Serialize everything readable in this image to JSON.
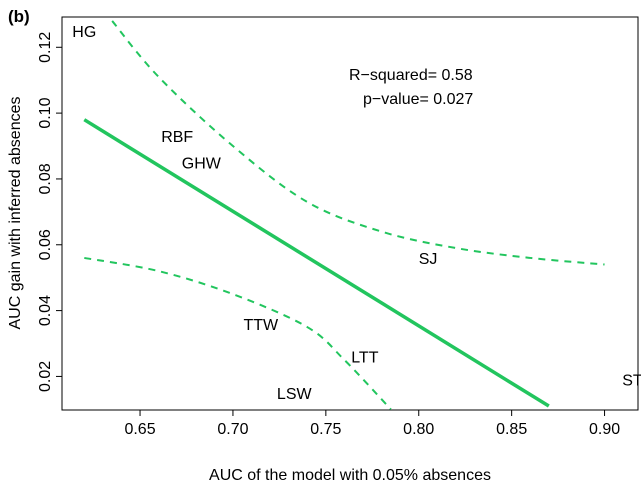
{
  "chart_data": {
    "type": "scatter",
    "panel_label": "(b)",
    "xlabel": "AUC of the model with 0.05% absences",
    "ylabel": "AUC gain with inferred absences",
    "xlim": [
      0.608,
      0.918
    ],
    "ylim": [
      0.0098,
      0.1292
    ],
    "x_ticks": [
      "0.65",
      "0.70",
      "0.75",
      "0.80",
      "0.85",
      "0.90"
    ],
    "y_ticks": [
      "0.02",
      "0.04",
      "0.06",
      "0.08",
      "0.10",
      "0.12"
    ],
    "points": [
      {
        "label": "HG",
        "x": 0.62,
        "y": 0.125
      },
      {
        "label": "RBF",
        "x": 0.67,
        "y": 0.093
      },
      {
        "label": "GHW",
        "x": 0.683,
        "y": 0.085
      },
      {
        "label": "SJ",
        "x": 0.805,
        "y": 0.056
      },
      {
        "label": "TTW",
        "x": 0.715,
        "y": 0.036
      },
      {
        "label": "LTT",
        "x": 0.771,
        "y": 0.026
      },
      {
        "label": "LSW",
        "x": 0.733,
        "y": 0.015
      },
      {
        "label": "ST",
        "x": 0.915,
        "y": 0.019
      }
    ],
    "regression_line": {
      "color": "#22c55e",
      "x": [
        0.62,
        0.87
      ],
      "y": [
        0.098,
        0.011
      ]
    },
    "confidence_band": {
      "color": "#22c55e",
      "upper": {
        "x": [
          0.635,
          0.66,
          0.7,
          0.74,
          0.78,
          0.82,
          0.86,
          0.9
        ],
        "y": [
          0.128,
          0.111,
          0.09,
          0.073,
          0.064,
          0.059,
          0.056,
          0.054
        ]
      },
      "lower": {
        "x": [
          0.62,
          0.66,
          0.7,
          0.74,
          0.76,
          0.785
        ],
        "y": [
          0.056,
          0.052,
          0.045,
          0.035,
          0.025,
          0.01
        ]
      }
    },
    "stats": {
      "r_squared": "R−squared= 0.58",
      "p_value": "p−value= 0.027"
    }
  }
}
